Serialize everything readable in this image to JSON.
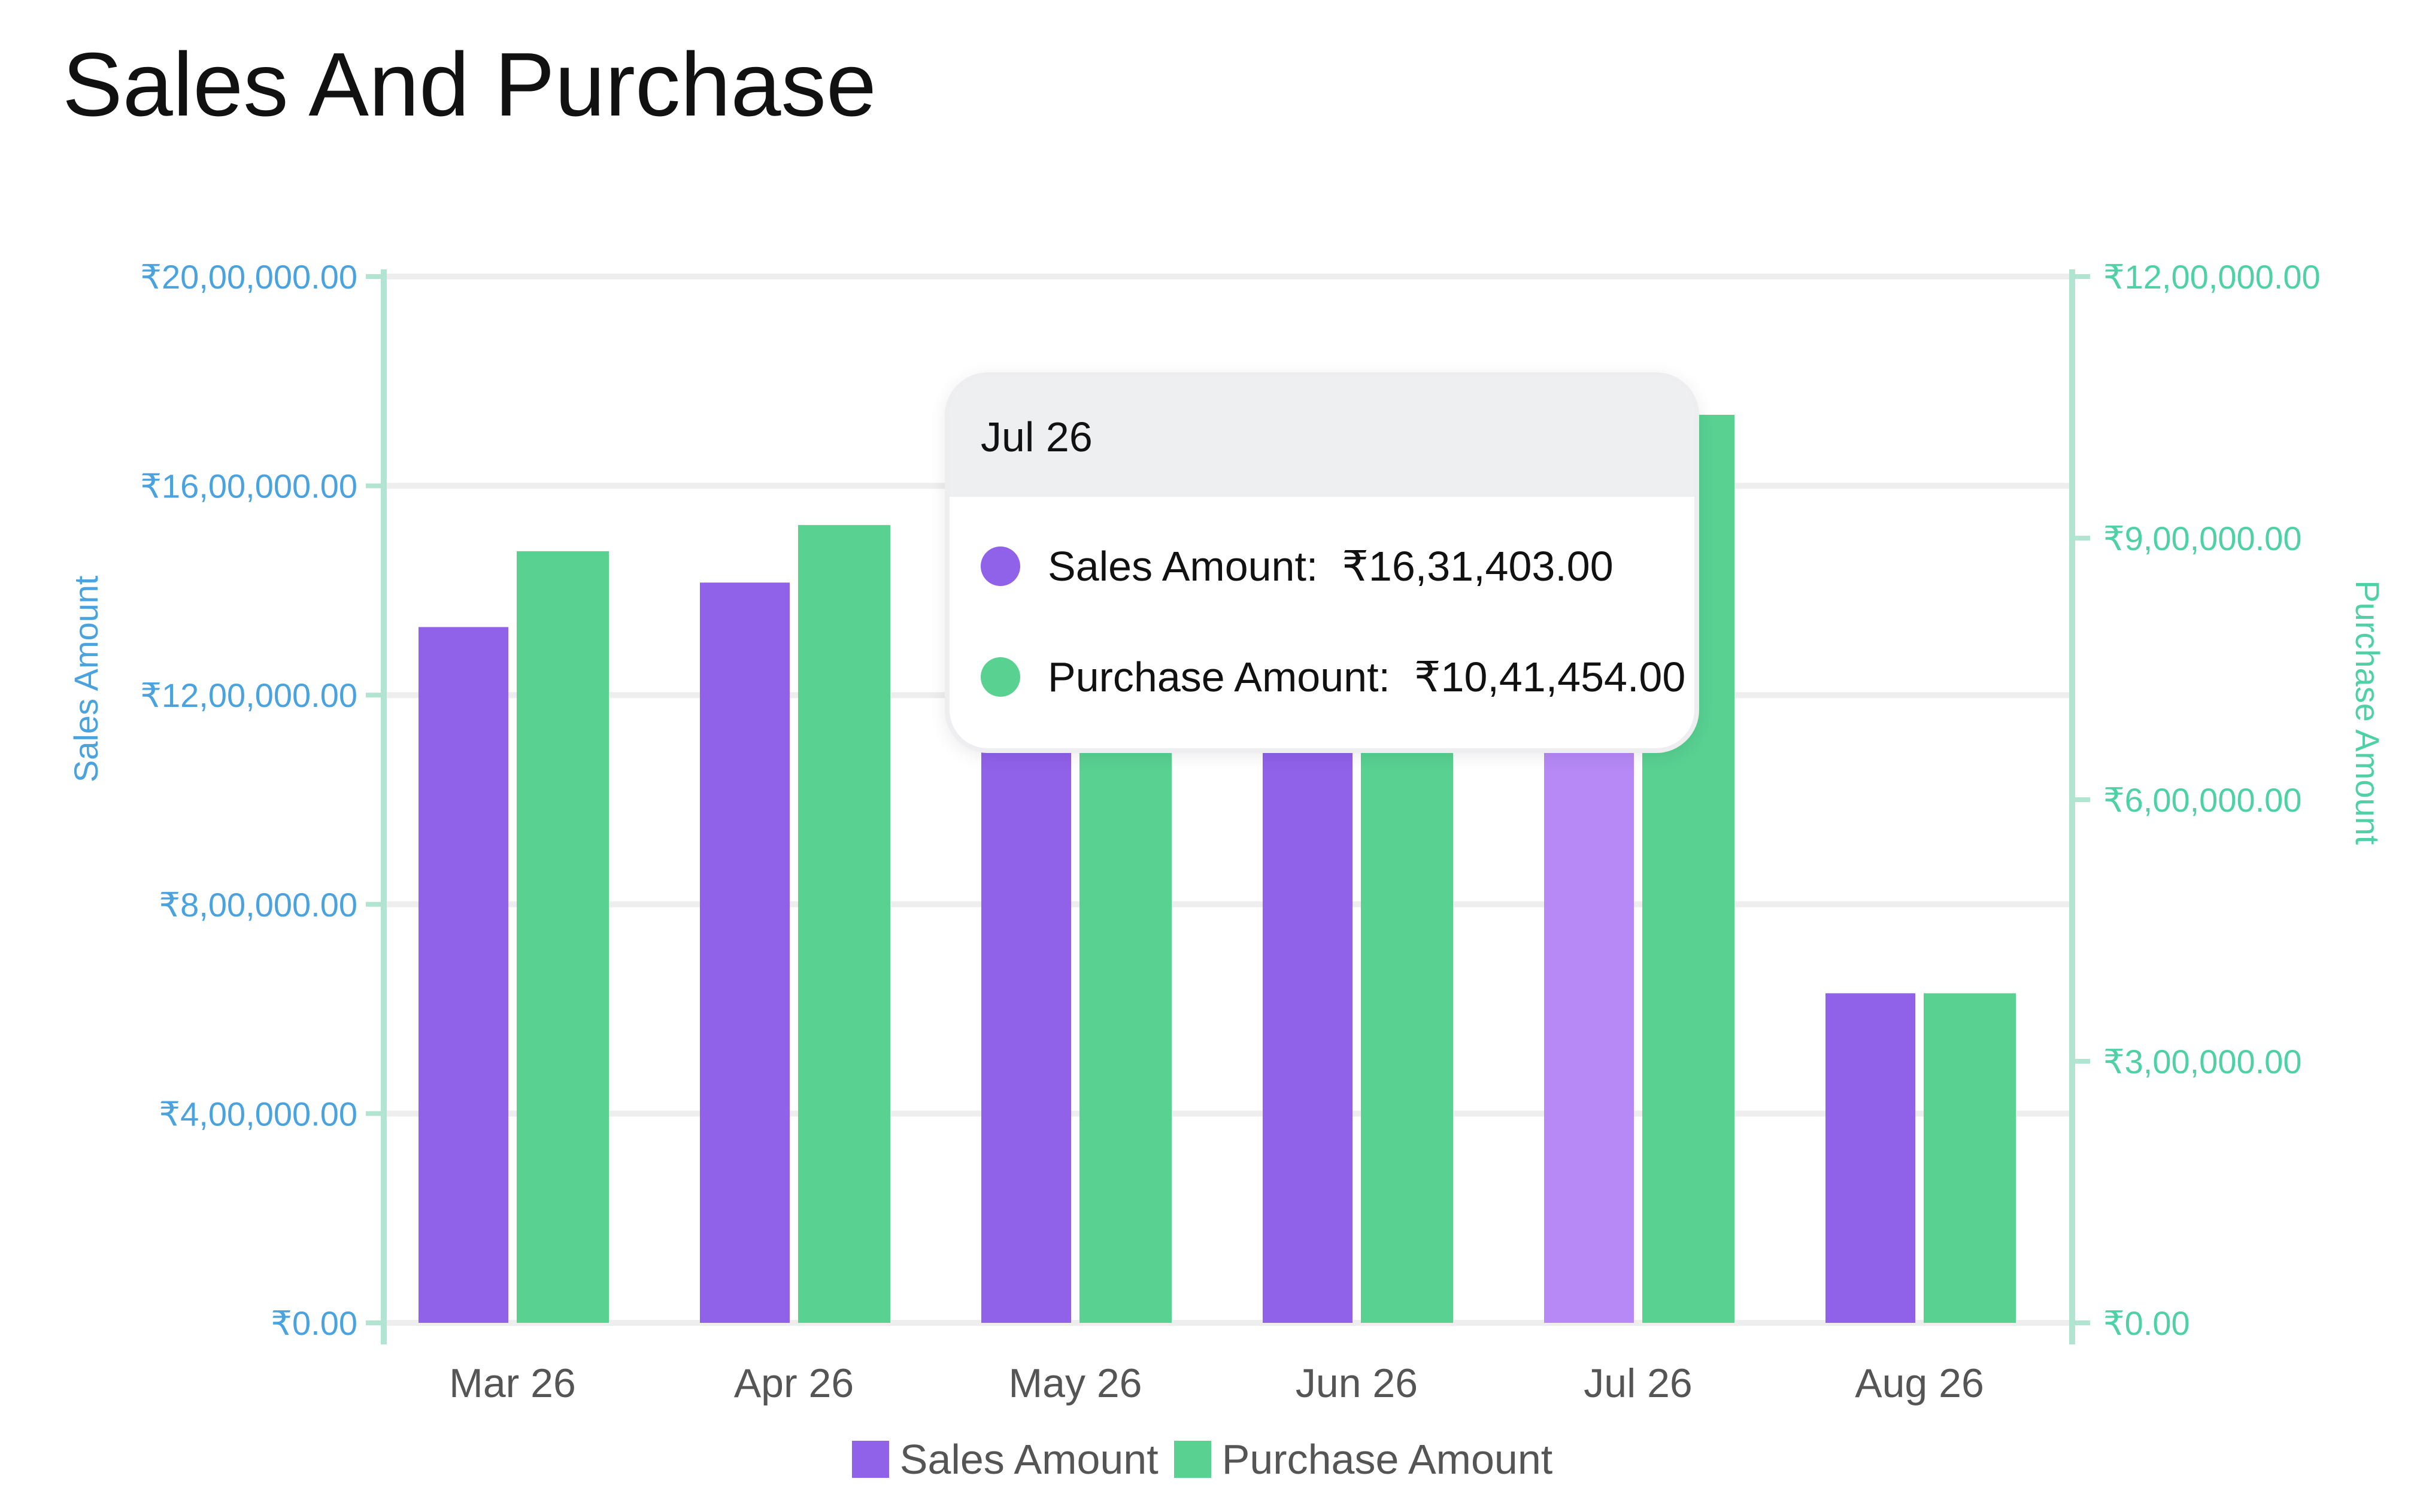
{
  "title": "Sales And Purchase",
  "colors": {
    "sales": "#9061e9",
    "sales_highlight": "#b689f6",
    "purchase": "#58d191",
    "left_axis_text": "#4aa3df",
    "right_axis_text": "#4fd1a5",
    "axis_line": "#b2e4d2",
    "grid": "#eeeeee",
    "category_text": "#555555"
  },
  "chart_data": {
    "type": "bar",
    "categories": [
      "Mar 26",
      "Apr 26",
      "May 26",
      "Jun 26",
      "Jul 26",
      "Aug 26"
    ],
    "series": [
      {
        "name": "Sales Amount",
        "axis": "left",
        "values": [
          1330000,
          1415000,
          1300000,
          1300000,
          1631403,
          630000
        ]
      },
      {
        "name": "Purchase Amount",
        "axis": "right",
        "values": [
          885000,
          915000,
          880000,
          880000,
          1041454,
          378000
        ]
      }
    ],
    "left_axis": {
      "label": "Sales Amount",
      "range": [
        0,
        2000000
      ],
      "ticks": [
        0,
        400000,
        800000,
        1200000,
        1600000,
        2000000
      ],
      "tick_labels": [
        "₹0.00",
        "₹4,00,000.00",
        "₹8,00,000.00",
        "₹12,00,000.00",
        "₹16,00,000.00",
        "₹20,00,000.00"
      ]
    },
    "right_axis": {
      "label": "Purchase Amount",
      "range": [
        0,
        1200000
      ],
      "ticks": [
        0,
        300000,
        600000,
        900000,
        1200000
      ],
      "tick_labels": [
        "₹0.00",
        "₹3,00,000.00",
        "₹6,00,000.00",
        "₹9,00,000.00",
        "₹12,00,000.00"
      ]
    },
    "grid": true,
    "highlighted_category": "Jul 26",
    "legend": {
      "placement": "bottom-center",
      "items": [
        "Sales Amount",
        "Purchase Amount"
      ]
    }
  },
  "tooltip": {
    "title": "Jul 26",
    "rows": [
      {
        "label": "Sales Amount:",
        "value": "₹16,31,403.00"
      },
      {
        "label": "Purchase Amount:",
        "value": "₹10,41,454.00"
      }
    ]
  }
}
